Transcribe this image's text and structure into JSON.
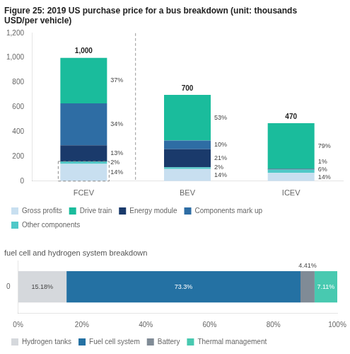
{
  "chart_data": [
    {
      "type": "bar",
      "stacked": true,
      "title": [
        "Figure 25: 2019 US purchase price for a bus breakdown (unit: thousands",
        "USD/per vehicle)"
      ],
      "categories": [
        "FCEV",
        "BEV",
        "ICEV"
      ],
      "series": [
        {
          "name": "Gross profits",
          "color": "#c8dff0",
          "values": [
            140,
            98,
            65.8
          ],
          "share_labels": [
            "14%",
            "14%",
            "14%"
          ]
        },
        {
          "name": "Other components",
          "color": "#50c8c8",
          "values": [
            20,
            14,
            28.2
          ],
          "share_labels": [
            "2%",
            "2%",
            "6%"
          ]
        },
        {
          "name": "Energy module",
          "color": "#1a3a6b",
          "values": [
            130,
            147,
            4.7
          ],
          "share_labels": [
            "13%",
            "21%",
            "1%"
          ]
        },
        {
          "name": "Components mark up",
          "color": "#2e6da4",
          "values": [
            340,
            70,
            0
          ],
          "share_labels": [
            "34%",
            "10%",
            null
          ]
        },
        {
          "name": "Drive train",
          "color": "#1abc9c",
          "values": [
            370,
            371,
            371.3
          ],
          "share_labels": [
            "37%",
            "53%",
            "79%"
          ]
        }
      ],
      "totals": [
        1000,
        700,
        470
      ],
      "total_labels": [
        "1,000",
        "700",
        "470"
      ],
      "ylim": [
        0,
        1200
      ],
      "yticks": [
        0,
        200,
        400,
        600,
        800,
        {
          "value": 1000,
          "label": "1,000"
        },
        {
          "value": 1200,
          "label": "1,200"
        }
      ],
      "grid": false,
      "legend": "bottom",
      "legend_order": [
        "Gross profits",
        "Drive train",
        "Energy module",
        "Components mark up",
        "Other components"
      ]
    },
    {
      "type": "bar",
      "orientation": "horizontal",
      "stacked": true,
      "subtitle": "fuel cell and hydrogen system breakdown",
      "categories": [
        "0"
      ],
      "series": [
        {
          "name": "Hydrogen tanks",
          "color": "#d5d8dc",
          "values": [
            15.18
          ],
          "value_labels": [
            "15.18%"
          ]
        },
        {
          "name": "Fuel cell system",
          "color": "#2471a3",
          "values": [
            73.3
          ],
          "value_labels": [
            "73.3%"
          ]
        },
        {
          "name": "Battery",
          "color": "#808b96",
          "values": [
            4.41
          ],
          "value_labels": [
            "4.41%"
          ]
        },
        {
          "name": "Thermal management",
          "color": "#48c9b0",
          "values": [
            7.11
          ],
          "value_labels": [
            "7.11%"
          ]
        }
      ],
      "data_labels": true,
      "xlim": [
        0,
        100
      ],
      "xticks": [
        {
          "value": 0,
          "label": "0%"
        },
        {
          "value": 20,
          "label": "20%"
        },
        {
          "value": 40,
          "label": "40%"
        },
        {
          "value": 60,
          "label": "60%"
        },
        {
          "value": 80,
          "label": "80%"
        },
        {
          "value": 100,
          "label": "100%"
        }
      ],
      "grid": false,
      "legend": "bottom"
    }
  ]
}
